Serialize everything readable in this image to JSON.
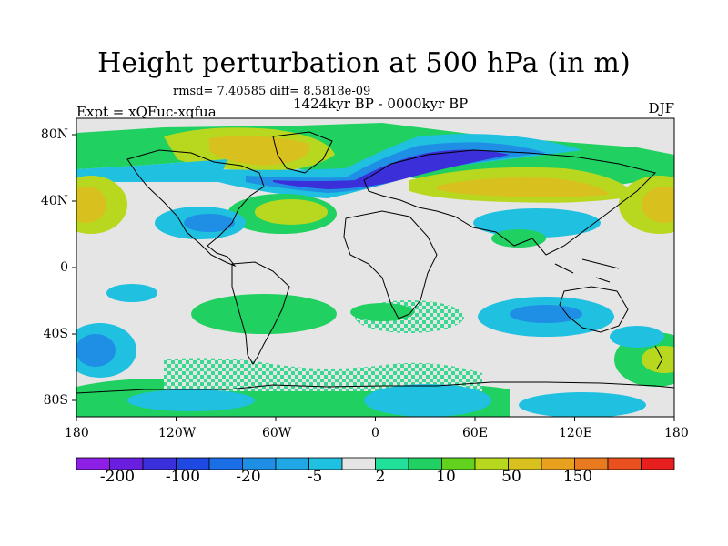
{
  "title": "Height perturbation at 500 hPa (in m)",
  "stats": "rmsd= 7.40585 diff= 8.5818e-09",
  "period": "1424kyr BP - 0000kyr BP",
  "experiment": "Expt = xQFuc-xqfua",
  "season": "DJF",
  "map": {
    "projection": "cylindrical equidistant",
    "lon_range": [
      -180,
      180
    ],
    "lat_range": [
      -90,
      90
    ],
    "lon_ticks": [
      "180",
      "120W",
      "60W",
      "0",
      "60E",
      "120E",
      "180"
    ],
    "lat_ticks": [
      "80N",
      "40N",
      "0",
      "40S",
      "80S"
    ]
  },
  "colorbar": {
    "labels": [
      "-200",
      "-100",
      "-20",
      "-5",
      "2",
      "10",
      "50",
      "150"
    ],
    "colors": [
      "#8d1fe6",
      "#6a1fe0",
      "#3b2fd9",
      "#1f49e0",
      "#1a6fe6",
      "#1f8fe6",
      "#20a7e6",
      "#1fc0e0",
      "#e5e5e5",
      "#20e09a",
      "#20d060",
      "#62d21f",
      "#b8d81f",
      "#d8c01f",
      "#e8a01f",
      "#e87a1f",
      "#e8501f",
      "#e81f1f"
    ]
  },
  "colors": {
    "neutral": "#e5e5e5",
    "background": "#ffffff",
    "coast": "#000000"
  }
}
